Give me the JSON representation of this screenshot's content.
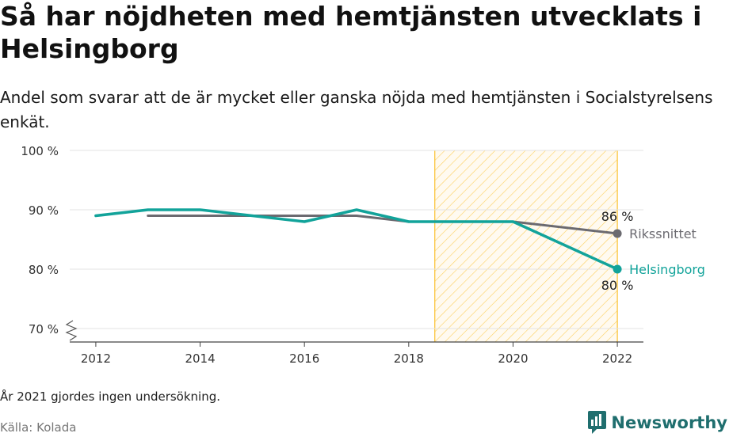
{
  "header": {
    "title": "Så har nöjdheten med hemtjänsten utvecklats i Helsingborg",
    "subtitle": "Andel som svarar att de är mycket eller ganska nöjda med hemtjänsten i Socialstyrelsens enkät."
  },
  "footer": {
    "note": "År 2021 gjordes ingen undersökning.",
    "source": "Källa: Kolada",
    "brand": "Newsworthy"
  },
  "colors": {
    "helsingborg": "#12a39a",
    "riksnittet": "#6b6a70",
    "highlight": "#fbc02d"
  },
  "chart_data": {
    "type": "line",
    "x": [
      2012,
      2013,
      2014,
      2015,
      2016,
      2017,
      2018,
      2019,
      2020,
      2022
    ],
    "series": [
      {
        "name": "Helsingborg",
        "values": [
          89,
          90,
          90,
          89,
          88,
          90,
          88,
          88,
          88,
          80
        ],
        "end_label": "80 %"
      },
      {
        "name": "Rikssnittet",
        "values": [
          null,
          89,
          89,
          89,
          89,
          89,
          88,
          88,
          88,
          86
        ],
        "end_label": "86 %"
      }
    ],
    "ylim": [
      70,
      100
    ],
    "yticks": [
      {
        "value": 70,
        "label": "70 %"
      },
      {
        "value": 80,
        "label": "80 %"
      },
      {
        "value": 90,
        "label": "90 %"
      },
      {
        "value": 100,
        "label": "100 %"
      }
    ],
    "xticks": [
      2012,
      2014,
      2016,
      2018,
      2020,
      2022
    ],
    "xlim": [
      2011.5,
      2022.5
    ],
    "highlight_range": [
      2018.5,
      2022
    ],
    "grid": true,
    "y_axis_break": true
  }
}
